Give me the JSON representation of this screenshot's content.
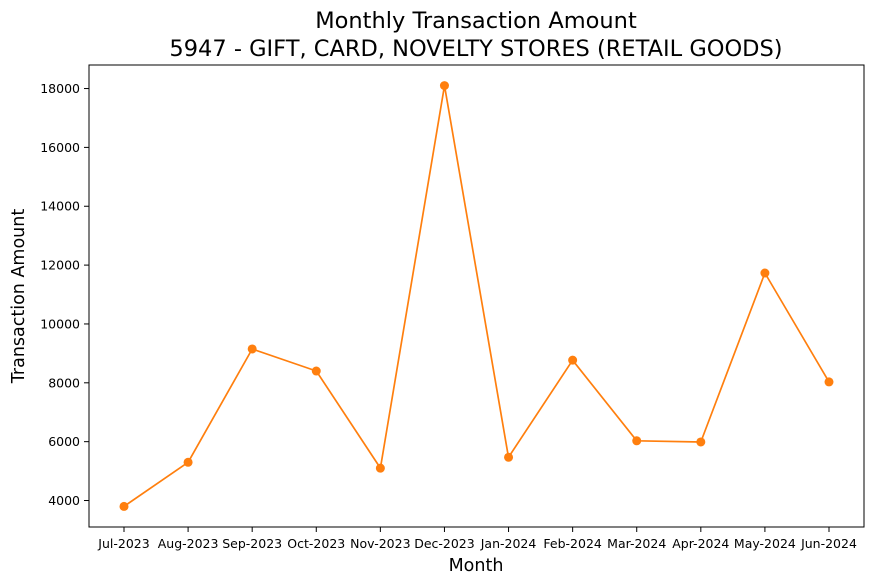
{
  "chart_data": {
    "type": "line",
    "title": "Monthly Transaction Amount",
    "subtitle": "5947 - GIFT, CARD, NOVELTY STORES (RETAIL GOODS)",
    "xlabel": "Month",
    "ylabel": "Transaction Amount",
    "categories": [
      "Jul-2023",
      "Aug-2023",
      "Sep-2023",
      "Oct-2023",
      "Nov-2023",
      "Dec-2023",
      "Jan-2024",
      "Feb-2024",
      "Mar-2024",
      "Apr-2024",
      "May-2024",
      "Jun-2024"
    ],
    "series": [
      {
        "values": [
          3800,
          5300,
          9150,
          8400,
          5100,
          18100,
          5470,
          8770,
          6030,
          5990,
          11730,
          8030
        ],
        "color": "#ff7f0e",
        "marker": "circle"
      }
    ],
    "ylim": [
      3100,
      18800
    ],
    "yticks": [
      4000,
      6000,
      8000,
      10000,
      12000,
      14000,
      16000,
      18000
    ],
    "grid": false,
    "legend": "none"
  }
}
